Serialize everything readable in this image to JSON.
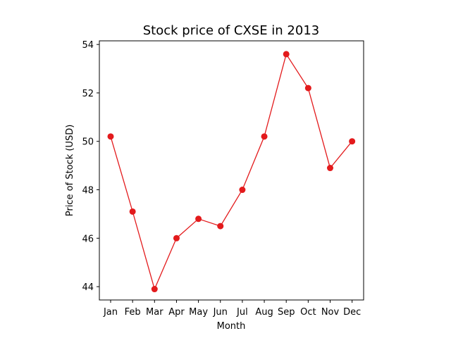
{
  "chart_data": {
    "type": "line",
    "title": "Stock price of CXSE in 2013",
    "xlabel": "Month",
    "ylabel": "Price of Stock (USD)",
    "categories": [
      "Jan",
      "Feb",
      "Mar",
      "Apr",
      "May",
      "Jun",
      "Jul",
      "Aug",
      "Sep",
      "Oct",
      "Nov",
      "Dec"
    ],
    "values": [
      50.2,
      47.1,
      43.9,
      46.0,
      46.8,
      46.5,
      48.0,
      50.2,
      53.6,
      52.2,
      48.9,
      50.0
    ],
    "ylim": [
      43.45,
      54.15
    ],
    "yticks": [
      "44",
      "46",
      "48",
      "50",
      "52",
      "54"
    ],
    "line_color": "#e31a1c",
    "marker": "circle",
    "grid": false
  }
}
